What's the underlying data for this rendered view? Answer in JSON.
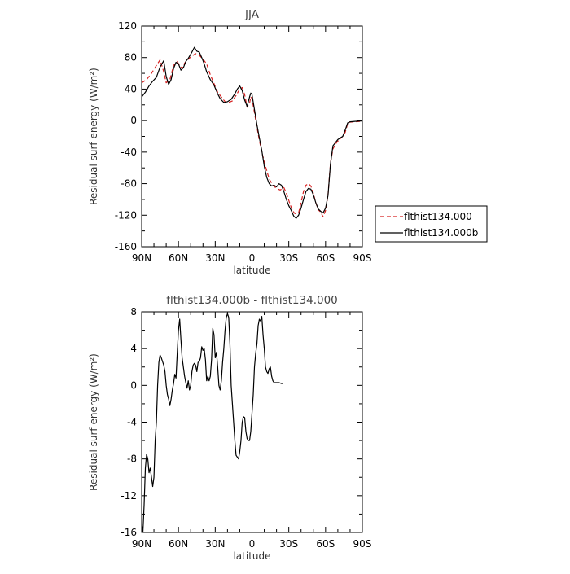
{
  "chart_data": [
    {
      "type": "line",
      "title": "JJA",
      "xlabel": "latitude",
      "ylabel": "Residual surf energy (W/m²)",
      "xlim": [
        90,
        -90
      ],
      "ylim": [
        -160,
        120
      ],
      "x_ticks": [
        {
          "value": 90,
          "label": "90N"
        },
        {
          "value": 60,
          "label": "60N"
        },
        {
          "value": 30,
          "label": "30N"
        },
        {
          "value": 0,
          "label": "0"
        },
        {
          "value": -30,
          "label": "30S"
        },
        {
          "value": -60,
          "label": "60S"
        },
        {
          "value": -90,
          "label": "90S"
        }
      ],
      "y_ticks": [
        120,
        80,
        40,
        0,
        -40,
        -80,
        -120,
        -160
      ],
      "legend_position": "outside-right",
      "series": [
        {
          "name": "flthist134.000",
          "color": "#d62020",
          "dash": "dashed",
          "points": [
            [
              90,
              48
            ],
            [
              86,
              52
            ],
            [
              82,
              60
            ],
            [
              78,
              70
            ],
            [
              75,
              77
            ],
            [
              72,
              62
            ],
            [
              70,
              48
            ],
            [
              67,
              52
            ],
            [
              64,
              70
            ],
            [
              61,
              75
            ],
            [
              59,
              70
            ],
            [
              57,
              66
            ],
            [
              55,
              73
            ],
            [
              52,
              78
            ],
            [
              49,
              82
            ],
            [
              46,
              85
            ],
            [
              43,
              83
            ],
            [
              40,
              78
            ],
            [
              37,
              72
            ],
            [
              34,
              58
            ],
            [
              31,
              47
            ],
            [
              28,
              36
            ],
            [
              25,
              30
            ],
            [
              22,
              24
            ],
            [
              19,
              23
            ],
            [
              16,
              25
            ],
            [
              13,
              32
            ],
            [
              10,
              40
            ],
            [
              8,
              42
            ],
            [
              6,
              33
            ],
            [
              4,
              17
            ],
            [
              2,
              22
            ],
            [
              1,
              30
            ],
            [
              0,
              28
            ],
            [
              -2,
              10
            ],
            [
              -4,
              -8
            ],
            [
              -6,
              -25
            ],
            [
              -8,
              -40
            ],
            [
              -11,
              -58
            ],
            [
              -14,
              -74
            ],
            [
              -17,
              -82
            ],
            [
              -20,
              -86
            ],
            [
              -23,
              -88
            ],
            [
              -26,
              -85
            ],
            [
              -28,
              -92
            ],
            [
              -31,
              -106
            ],
            [
              -33,
              -114
            ],
            [
              -35,
              -118
            ],
            [
              -38,
              -117
            ],
            [
              -40,
              -104
            ],
            [
              -42,
              -90
            ],
            [
              -44,
              -82
            ],
            [
              -46,
              -80
            ],
            [
              -48,
              -83
            ],
            [
              -50,
              -92
            ],
            [
              -52,
              -104
            ],
            [
              -54,
              -113
            ],
            [
              -56,
              -116
            ],
            [
              -58,
              -122
            ],
            [
              -60,
              -114
            ],
            [
              -62,
              -94
            ],
            [
              -64,
              -54
            ],
            [
              -66,
              -36
            ],
            [
              -68,
              -30
            ],
            [
              -70,
              -26
            ],
            [
              -72,
              -23
            ],
            [
              -74,
              -20
            ],
            [
              -76,
              -15
            ],
            [
              -78,
              -4
            ],
            [
              -80,
              -2
            ],
            [
              -84,
              -1.5
            ],
            [
              -88,
              -1
            ],
            [
              -90,
              -1
            ]
          ]
        },
        {
          "name": "flthist134.000b",
          "color": "#000000",
          "dash": "solid",
          "points": [
            [
              90,
              30
            ],
            [
              87,
              36
            ],
            [
              84,
              44
            ],
            [
              81,
              50
            ],
            [
              78,
              55
            ],
            [
              75,
              68
            ],
            [
              72,
              76
            ],
            [
              70,
              56
            ],
            [
              68,
              46
            ],
            [
              66,
              52
            ],
            [
              64,
              66
            ],
            [
              62,
              74
            ],
            [
              60,
              72
            ],
            [
              58,
              64
            ],
            [
              56,
              67
            ],
            [
              54,
              75
            ],
            [
              52,
              79
            ],
            [
              49,
              87
            ],
            [
              47,
              93
            ],
            [
              45,
              88
            ],
            [
              43,
              87
            ],
            [
              41,
              80
            ],
            [
              39,
              72
            ],
            [
              37,
              62
            ],
            [
              34,
              52
            ],
            [
              31,
              45
            ],
            [
              28,
              34
            ],
            [
              26,
              28
            ],
            [
              23,
              23
            ],
            [
              20,
              24
            ],
            [
              17,
              27
            ],
            [
              14,
              34
            ],
            [
              12,
              40
            ],
            [
              10,
              44
            ],
            [
              8,
              38
            ],
            [
              6,
              26
            ],
            [
              4,
              18
            ],
            [
              2,
              30
            ],
            [
              1,
              35
            ],
            [
              0,
              33
            ],
            [
              -2,
              14
            ],
            [
              -4,
              -5
            ],
            [
              -6,
              -22
            ],
            [
              -8,
              -38
            ],
            [
              -10,
              -58
            ],
            [
              -12,
              -72
            ],
            [
              -14,
              -80
            ],
            [
              -16,
              -83
            ],
            [
              -18,
              -82
            ],
            [
              -20,
              -84
            ],
            [
              -22,
              -80
            ],
            [
              -24,
              -82
            ],
            [
              -26,
              -90
            ],
            [
              -28,
              -100
            ],
            [
              -30,
              -108
            ],
            [
              -32,
              -114
            ],
            [
              -34,
              -121
            ],
            [
              -36,
              -124
            ],
            [
              -38,
              -120
            ],
            [
              -40,
              -111
            ],
            [
              -42,
              -100
            ],
            [
              -44,
              -90
            ],
            [
              -46,
              -86
            ],
            [
              -48,
              -87
            ],
            [
              -50,
              -94
            ],
            [
              -52,
              -104
            ],
            [
              -54,
              -112
            ],
            [
              -56,
              -115
            ],
            [
              -58,
              -117
            ],
            [
              -60,
              -111
            ],
            [
              -62,
              -95
            ],
            [
              -64,
              -55
            ],
            [
              -66,
              -32
            ],
            [
              -68,
              -28
            ],
            [
              -70,
              -24
            ],
            [
              -72,
              -22
            ],
            [
              -74,
              -20
            ],
            [
              -76,
              -12
            ],
            [
              -78,
              -3
            ],
            [
              -80,
              -1.5
            ],
            [
              -84,
              -1
            ],
            [
              -88,
              -0.5
            ],
            [
              -90,
              -0.5
            ]
          ]
        }
      ]
    },
    {
      "type": "line",
      "title": "flthist134.000b - flthist134.000",
      "xlabel": "latitude",
      "ylabel": "Residual surf energy (W/m²)",
      "xlim": [
        90,
        -90
      ],
      "ylim": [
        -16,
        8
      ],
      "x_ticks": [
        {
          "value": 90,
          "label": "90N"
        },
        {
          "value": 60,
          "label": "60N"
        },
        {
          "value": 30,
          "label": "30N"
        },
        {
          "value": 0,
          "label": "0"
        },
        {
          "value": -30,
          "label": "30S"
        },
        {
          "value": -60,
          "label": "60S"
        },
        {
          "value": -90,
          "label": "90S"
        }
      ],
      "y_ticks": [
        8,
        4,
        0,
        -4,
        -8,
        -12,
        -16
      ],
      "series": [
        {
          "color": "#000000",
          "dash": "solid",
          "points": [
            [
              90,
              -15
            ],
            [
              89,
              -16
            ],
            [
              88,
              -13
            ],
            [
              87,
              -9
            ],
            [
              86,
              -7.5
            ],
            [
              85,
              -8
            ],
            [
              84,
              -9.5
            ],
            [
              83,
              -9
            ],
            [
              82,
              -10
            ],
            [
              81,
              -11
            ],
            [
              80,
              -10
            ],
            [
              79,
              -6
            ],
            [
              78,
              -4
            ],
            [
              77,
              0
            ],
            [
              76,
              2.5
            ],
            [
              75,
              3.3
            ],
            [
              74,
              3.0
            ],
            [
              73,
              2.6
            ],
            [
              72,
              2.2
            ],
            [
              71,
              1.5
            ],
            [
              70,
              0
            ],
            [
              69,
              -1
            ],
            [
              68,
              -1.5
            ],
            [
              67,
              -2.2
            ],
            [
              66,
              -1.5
            ],
            [
              65,
              -0.5
            ],
            [
              64,
              0.2
            ],
            [
              63,
              1.2
            ],
            [
              62,
              0.8
            ],
            [
              61,
              3.5
            ],
            [
              60,
              6
            ],
            [
              59,
              7.2
            ],
            [
              58,
              5
            ],
            [
              57,
              3
            ],
            [
              56,
              2
            ],
            [
              55,
              1
            ],
            [
              54,
              0.3
            ],
            [
              53,
              -0.3
            ],
            [
              52,
              0.5
            ],
            [
              51,
              -0.5
            ],
            [
              50,
              0
            ],
            [
              49,
              1.5
            ],
            [
              48,
              2.2
            ],
            [
              47,
              2.4
            ],
            [
              46,
              2.2
            ],
            [
              45,
              1.5
            ],
            [
              44,
              2.5
            ],
            [
              43,
              2.6
            ],
            [
              42,
              3.0
            ],
            [
              41,
              4.2
            ],
            [
              40,
              3.8
            ],
            [
              39,
              4.0
            ],
            [
              38,
              2.8
            ],
            [
              37,
              0.5
            ],
            [
              36,
              1.0
            ],
            [
              35,
              0.5
            ],
            [
              34,
              1.0
            ],
            [
              33,
              2.8
            ],
            [
              32,
              6.2
            ],
            [
              31,
              5.5
            ],
            [
              30,
              3.0
            ],
            [
              29,
              3.6
            ],
            [
              28,
              2.0
            ],
            [
              27,
              0
            ],
            [
              26,
              -0.5
            ],
            [
              25,
              0.5
            ],
            [
              24,
              2.5
            ],
            [
              23,
              4.0
            ],
            [
              22,
              6.0
            ],
            [
              21,
              7.4
            ],
            [
              20,
              7.8
            ],
            [
              19,
              7.4
            ],
            [
              18,
              4.5
            ],
            [
              17,
              0
            ],
            [
              16,
              -2
            ],
            [
              15,
              -4
            ],
            [
              14,
              -6
            ],
            [
              13,
              -7.6
            ],
            [
              12,
              -7.8
            ],
            [
              11,
              -8.0
            ],
            [
              10,
              -7.2
            ],
            [
              9,
              -6
            ],
            [
              8,
              -4
            ],
            [
              7,
              -3.4
            ],
            [
              6,
              -3.5
            ],
            [
              5,
              -5
            ],
            [
              4,
              -5.8
            ],
            [
              3,
              -6
            ],
            [
              2,
              -6
            ],
            [
              1,
              -5
            ],
            [
              0,
              -3
            ],
            [
              -1,
              -1
            ],
            [
              -2,
              2
            ],
            [
              -3,
              3.5
            ],
            [
              -4,
              4.5
            ],
            [
              -5,
              6.5
            ],
            [
              -6,
              7.2
            ],
            [
              -7,
              7.0
            ],
            [
              -8,
              7.5
            ],
            [
              -9,
              5.5
            ],
            [
              -10,
              4.0
            ],
            [
              -11,
              2.0
            ],
            [
              -12,
              1.5
            ],
            [
              -13,
              1.3
            ],
            [
              -14,
              1.8
            ],
            [
              -15,
              2.0
            ],
            [
              -16,
              1.0
            ],
            [
              -17,
              0.5
            ],
            [
              -18,
              0.3
            ],
            [
              -20,
              0.3
            ],
            [
              -22,
              0.3
            ],
            [
              -24,
              0.2
            ],
            [
              -25,
              0.2
            ]
          ]
        }
      ]
    }
  ]
}
